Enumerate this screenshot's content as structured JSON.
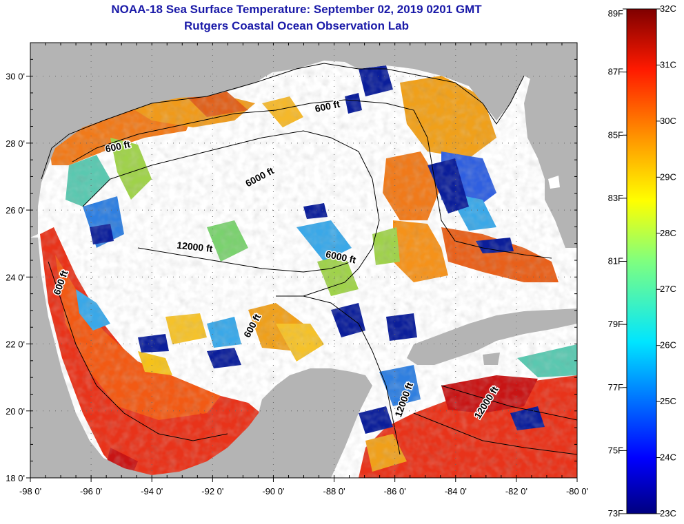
{
  "title": "NOAA-18 Sea Surface Temperature:  September 02, 2019 0201 GMT",
  "subtitle": "Rutgers Coastal Ocean Observation Lab",
  "map": {
    "lon_range": [
      -98,
      -80
    ],
    "lat_range": [
      18,
      31
    ],
    "lon_ticks": [
      "-98 0'",
      "-96 0'",
      "-94 0'",
      "-92 0'",
      "-90 0'",
      "-88 0'",
      "-86 0'",
      "-84 0'",
      "-82 0'",
      "-80 0'"
    ],
    "lat_ticks": [
      "18 0'",
      "20 0'",
      "22 0'",
      "24 0'",
      "26 0'",
      "28 0'",
      "30 0'"
    ],
    "contour_labels": [
      {
        "text": "600 ft",
        "lon": -88.2,
        "lat": 29.0,
        "rot": -12
      },
      {
        "text": "600 ft",
        "lon": -95.1,
        "lat": 27.8,
        "rot": -12
      },
      {
        "text": "6000 ft",
        "lon": -90.4,
        "lat": 26.9,
        "rot": -28
      },
      {
        "text": "12000 ft",
        "lon": -92.6,
        "lat": 24.8,
        "rot": 6
      },
      {
        "text": "6000 ft",
        "lon": -87.8,
        "lat": 24.5,
        "rot": 12
      },
      {
        "text": "600 ft",
        "lon": -96.9,
        "lat": 23.8,
        "rot": -70
      },
      {
        "text": "600 ft",
        "lon": -90.6,
        "lat": 22.5,
        "rot": -62
      },
      {
        "text": "12000 ft",
        "lon": -85.6,
        "lat": 20.3,
        "rot": -70
      },
      {
        "text": "12000 ft",
        "lon": -82.9,
        "lat": 20.2,
        "rot": -58
      }
    ]
  },
  "colorbar": {
    "min_c": 23,
    "max_c": 32,
    "min_f": 73,
    "max_f": 89,
    "celsius_labels": [
      "32C",
      "31C",
      "30C",
      "29C",
      "28C",
      "27C",
      "26C",
      "25C",
      "24C",
      "23C"
    ],
    "fahrenheit_labels": [
      "89F",
      "87F",
      "85F",
      "83F",
      "81F",
      "79F",
      "77F",
      "75F",
      "73F"
    ]
  },
  "colors": {
    "title": "#1a1aa8",
    "land": "#b4b4b4",
    "cloud": "#ffffff",
    "contour": "#000000"
  }
}
